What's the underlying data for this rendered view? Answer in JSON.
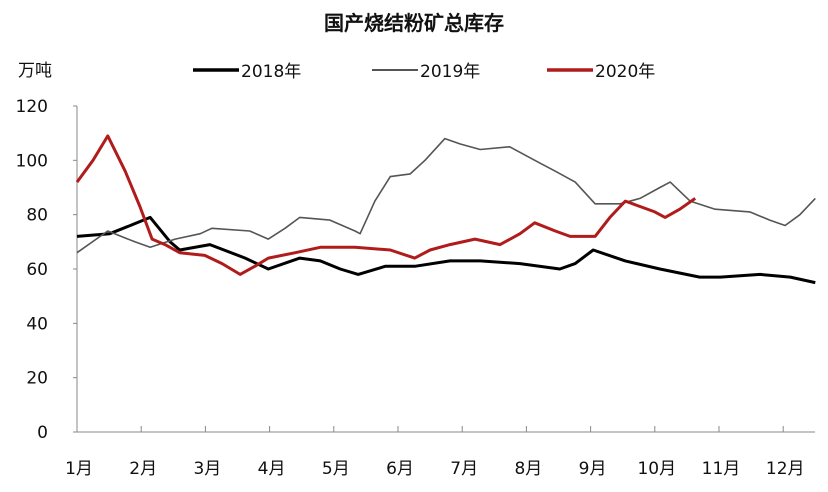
{
  "chart_data": {
    "type": "line",
    "title": "国产烧结粉矿总库存",
    "ylabel": "万吨",
    "xlabel": "",
    "ylim": [
      0,
      120
    ],
    "xlim": [
      1,
      12.5
    ],
    "yticks": [
      0,
      20,
      40,
      60,
      80,
      100,
      120
    ],
    "x_tick_labels": [
      "1月",
      "2月",
      "3月",
      "4月",
      "5月",
      "6月",
      "7月",
      "8月",
      "9月",
      "10月",
      "11月",
      "12月"
    ],
    "grid": false,
    "legend_position": "top",
    "series": [
      {
        "name": "2018年",
        "color": "#000000",
        "x": [
          1.0,
          1.51,
          1.83,
          2.14,
          2.45,
          2.6,
          3.07,
          3.62,
          3.98,
          4.47,
          4.79,
          5.1,
          5.38,
          5.8,
          6.26,
          6.81,
          7.28,
          7.9,
          8.52,
          8.76,
          9.04,
          9.54,
          10.08,
          10.7,
          11.02,
          11.64,
          12.11,
          12.5
        ],
        "y": [
          72,
          73,
          76,
          79,
          70,
          67,
          69,
          64,
          60,
          64,
          63,
          60,
          58,
          61,
          61,
          63,
          63,
          62,
          60,
          62,
          67,
          63,
          60,
          57,
          57,
          58,
          57,
          55
        ]
      },
      {
        "name": "2019年",
        "color": "#555555",
        "x": [
          1.0,
          1.48,
          1.9,
          2.14,
          2.53,
          2.92,
          3.1,
          3.69,
          3.98,
          4.24,
          4.47,
          4.94,
          5.33,
          5.41,
          5.64,
          5.88,
          6.19,
          6.42,
          6.73,
          6.97,
          7.28,
          7.74,
          8.21,
          8.45,
          8.76,
          9.07,
          9.46,
          9.77,
          10.08,
          10.24,
          10.55,
          10.94,
          11.48,
          11.79,
          12.03,
          12.26,
          12.5
        ],
        "y": [
          66,
          74,
          70,
          68,
          71,
          73,
          75,
          74,
          71,
          75,
          79,
          78,
          74,
          73,
          85,
          94,
          95,
          100,
          108,
          106,
          104,
          105,
          99,
          96,
          92,
          84,
          84,
          86,
          90,
          92,
          85,
          82,
          81,
          78,
          76,
          80,
          86
        ]
      },
      {
        "name": "2020年",
        "color": "#b01c1c",
        "x": [
          1.0,
          1.25,
          1.48,
          1.75,
          1.98,
          2.17,
          2.37,
          2.6,
          2.99,
          3.26,
          3.54,
          3.77,
          3.98,
          4.4,
          4.79,
          5.33,
          5.88,
          6.26,
          6.5,
          6.81,
          7.2,
          7.59,
          7.9,
          8.13,
          8.45,
          8.68,
          9.07,
          9.3,
          9.54,
          9.77,
          10.0,
          10.16,
          10.39,
          10.63
        ],
        "y": [
          92,
          100,
          109,
          96,
          83,
          71,
          69,
          66,
          65,
          62,
          58,
          61,
          64,
          66,
          68,
          68,
          67,
          64,
          67,
          69,
          71,
          69,
          73,
          77,
          74,
          72,
          72,
          79,
          85,
          83,
          81,
          79,
          82,
          86
        ]
      }
    ]
  }
}
